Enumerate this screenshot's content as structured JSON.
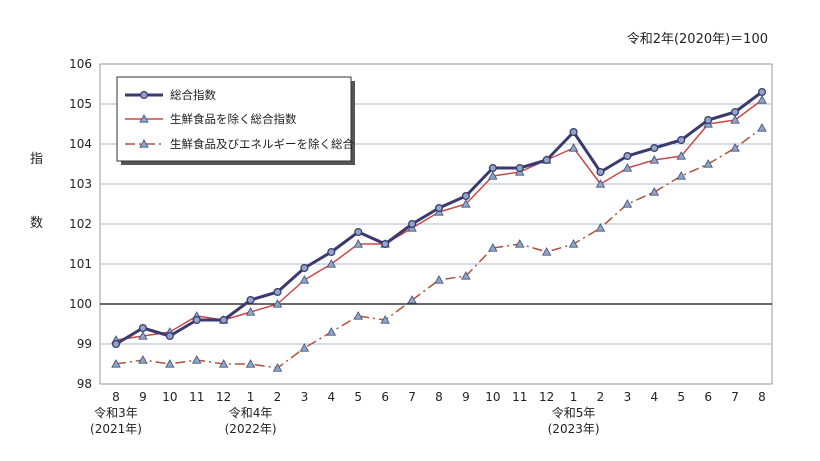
{
  "chart_data": {
    "type": "line",
    "note": "令和2年(2020年)＝100",
    "ylabel": [
      "指",
      "数"
    ],
    "ylim": [
      98,
      106
    ],
    "yticks": [
      98,
      99,
      100,
      101,
      102,
      103,
      104,
      105,
      106
    ],
    "categories": [
      "8",
      "9",
      "10",
      "11",
      "12",
      "1",
      "2",
      "3",
      "4",
      "5",
      "6",
      "7",
      "8",
      "9",
      "10",
      "11",
      "12",
      "1",
      "2",
      "3",
      "4",
      "5",
      "6",
      "7",
      "8"
    ],
    "year_labels": [
      {
        "index": 0,
        "era": "令和3年",
        "year": "(2021年)"
      },
      {
        "index": 5,
        "era": "令和4年",
        "year": "(2022年)"
      },
      {
        "index": 17,
        "era": "令和5年",
        "year": "(2023年)"
      }
    ],
    "series": [
      {
        "name": "総合指数",
        "color": "#3b3a6e",
        "marker": "circle",
        "dash": "",
        "values": [
          99.0,
          99.4,
          99.2,
          99.6,
          99.6,
          100.1,
          100.3,
          100.9,
          101.3,
          101.8,
          101.5,
          102.0,
          102.4,
          102.7,
          103.4,
          103.4,
          103.6,
          104.3,
          103.3,
          103.7,
          103.9,
          104.1,
          104.6,
          104.8,
          105.3
        ]
      },
      {
        "name": "生鮮食品を除く総合指数",
        "color": "#c8484a",
        "marker": "triangle",
        "dash": "",
        "values": [
          99.1,
          99.2,
          99.3,
          99.7,
          99.6,
          99.8,
          100.0,
          100.6,
          101.0,
          101.5,
          101.5,
          101.9,
          102.3,
          102.5,
          103.2,
          103.3,
          103.6,
          103.9,
          103.0,
          103.4,
          103.6,
          103.7,
          104.5,
          104.6,
          105.1
        ]
      },
      {
        "name": "生鮮食品及びエネルギーを除く総合",
        "color": "#b0513a",
        "marker": "triangle",
        "dash": "10,4,2,4",
        "values": [
          98.5,
          98.6,
          98.5,
          98.6,
          98.5,
          98.5,
          98.4,
          98.9,
          99.3,
          99.7,
          99.6,
          100.1,
          100.6,
          100.7,
          101.4,
          101.5,
          101.3,
          101.5,
          101.9,
          102.5,
          102.8,
          103.2,
          103.5,
          103.9,
          104.4
        ]
      }
    ],
    "legend_position": "top-left",
    "grid": true
  }
}
